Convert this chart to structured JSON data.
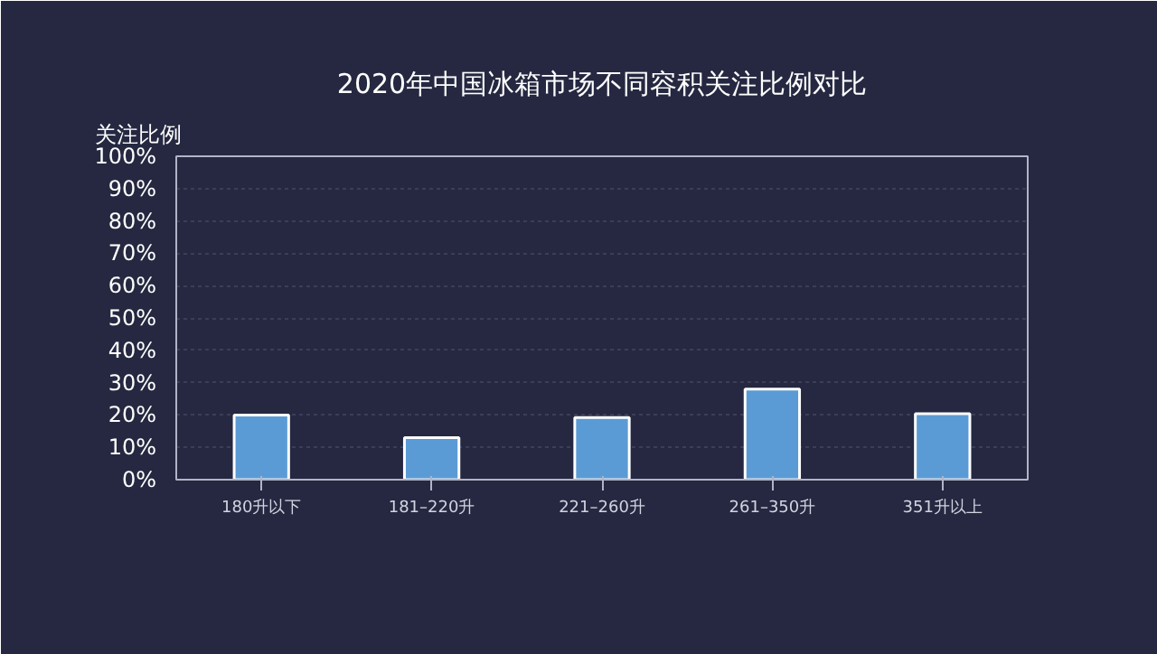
{
  "chart_data": {
    "type": "bar",
    "title": "2020年中国冰箱市场不同容积关注比例对比",
    "ylabel": "关注比例",
    "categories": [
      "180升以下",
      "181–220升",
      "221–260升",
      "261–350升",
      "351升以上"
    ],
    "values": [
      20,
      13,
      19.2,
      28,
      20.4
    ],
    "color": "#5b9bd5",
    "ylim": [
      0,
      100
    ],
    "yticks": [
      {
        "value": 0,
        "label": "0%"
      },
      {
        "value": 10,
        "label": "10%"
      },
      {
        "value": 20,
        "label": "20%"
      },
      {
        "value": 30,
        "label": "30%"
      },
      {
        "value": 40,
        "label": "40%"
      },
      {
        "value": 50,
        "label": "50%"
      },
      {
        "value": 60,
        "label": "60%"
      },
      {
        "value": 70,
        "label": "70%"
      },
      {
        "value": 80,
        "label": "80%"
      },
      {
        "value": 90,
        "label": "90%"
      },
      {
        "value": 100,
        "label": "100%"
      }
    ],
    "grid": "y"
  }
}
